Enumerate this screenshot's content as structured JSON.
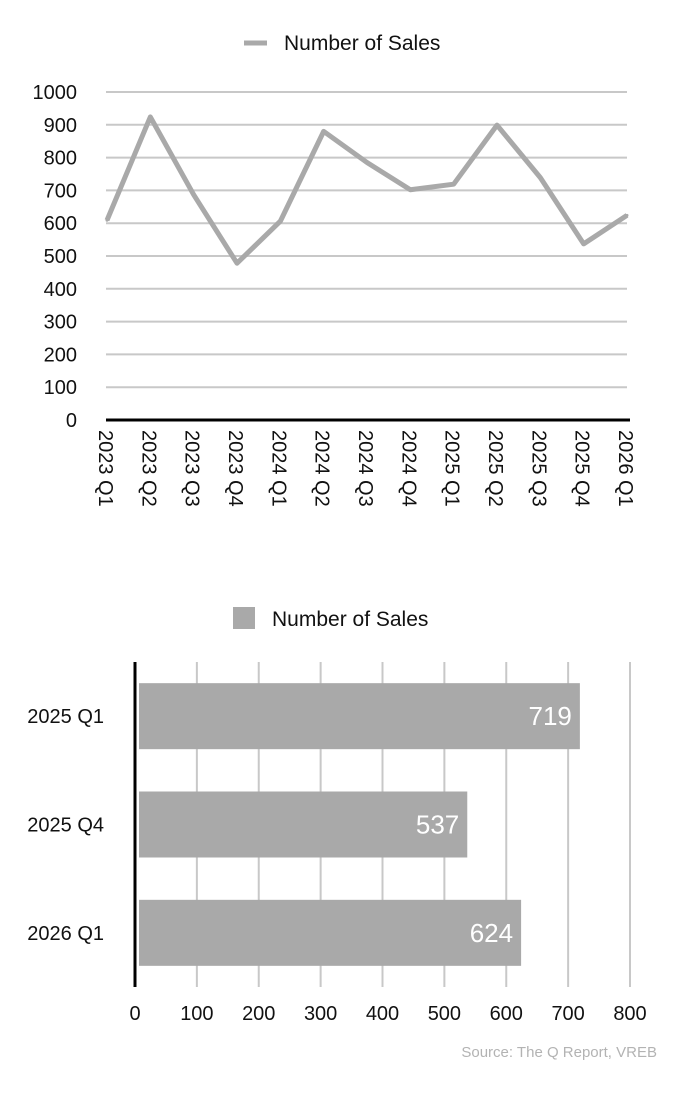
{
  "chart_data": [
    {
      "type": "line",
      "legend": [
        "Number of Sales"
      ],
      "categories": [
        "2023 Q1",
        "2023 Q2",
        "2023 Q3",
        "2023 Q4",
        "2024 Q1",
        "2024 Q2",
        "2024 Q3",
        "2024 Q4",
        "2025 Q1",
        "2025 Q2",
        "2025 Q3",
        "2025 Q4",
        "2026 Q1"
      ],
      "series": [
        {
          "name": "Number of Sales",
          "values": [
            609,
            924,
            687,
            478,
            606,
            880,
            785,
            702,
            719,
            899,
            739,
            537,
            624
          ]
        }
      ],
      "y_ticks": [
        "0",
        "100",
        "200",
        "300",
        "400",
        "500",
        "600",
        "700",
        "800",
        "900",
        "1000"
      ],
      "ylim": [
        0,
        1000
      ],
      "grid": true,
      "legend_position": "top",
      "color": "#a9a9a9"
    },
    {
      "type": "bar",
      "orientation": "horizontal",
      "legend": [
        "Number of Sales"
      ],
      "categories": [
        "2025 Q1",
        "2025 Q4",
        "2026 Q1"
      ],
      "series": [
        {
          "name": "Number of Sales",
          "values": [
            719,
            537,
            624
          ]
        }
      ],
      "data_labels": [
        "719",
        "537",
        "624"
      ],
      "x_ticks": [
        "0",
        "100",
        "200",
        "300",
        "400",
        "500",
        "600",
        "700",
        "800"
      ],
      "xlim": [
        0,
        800
      ],
      "grid": true,
      "legend_position": "top",
      "color": "#a9a9a9"
    }
  ],
  "source": "Source: The Q Report, VREB"
}
